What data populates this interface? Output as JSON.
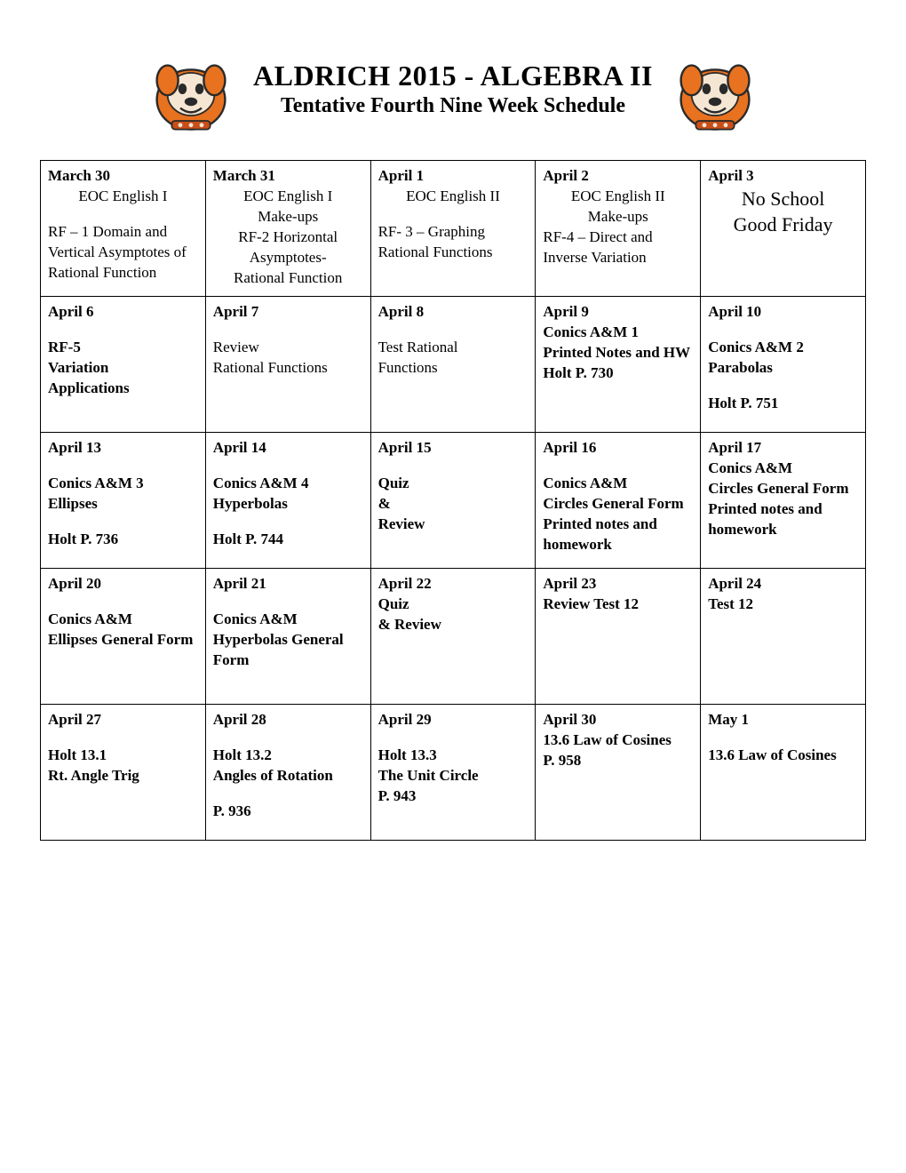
{
  "header": {
    "title": "ALDRICH 2015 - ALGEBRA II",
    "subtitle": "Tentative Fourth Nine Week Schedule",
    "mascot_colors": {
      "body": "#e8721f",
      "face": "#f5e6d3",
      "outline": "#2a2a2a",
      "collar": "#c94f1a"
    }
  },
  "table": {
    "border_color": "#000000",
    "columns": 5,
    "rows": [
      [
        {
          "date": "March 30",
          "lines": [
            {
              "t": "EOC English I",
              "style": "light-line"
            },
            {
              "t": "",
              "style": "blank-line"
            },
            {
              "t": "RF – 1 Domain and Vertical Asymptotes of Rational Function",
              "style": "light-left"
            }
          ]
        },
        {
          "date": "March 31",
          "lines": [
            {
              "t": "EOC English I",
              "style": "light-line"
            },
            {
              "t": "Make-ups",
              "style": "light-line"
            },
            {
              "t": "RF-2 Horizontal",
              "style": "light-line"
            },
            {
              "t": "Asymptotes-",
              "style": "light-line"
            },
            {
              "t": "Rational Function",
              "style": "light-line"
            }
          ]
        },
        {
          "date": "April 1",
          "lines": [
            {
              "t": "EOC English II",
              "style": "light-line"
            },
            {
              "t": "",
              "style": "blank-line"
            },
            {
              "t": "RF- 3 – Graphing",
              "style": "light-left"
            },
            {
              "t": "Rational Functions",
              "style": "light-left"
            }
          ]
        },
        {
          "date": "April 2",
          "lines": [
            {
              "t": "EOC English II",
              "style": "light-line"
            },
            {
              "t": "Make-ups",
              "style": "light-line"
            },
            {
              "t": "RF-4 – Direct and",
              "style": "light-left"
            },
            {
              "t": "Inverse Variation",
              "style": "light-left"
            }
          ]
        },
        {
          "date": "April 3",
          "lines": [
            {
              "t": "No School",
              "style": "big-line"
            },
            {
              "t": "Good Friday",
              "style": "big-line"
            }
          ]
        }
      ],
      [
        {
          "date": "April 6",
          "lines": [
            {
              "t": "",
              "style": "blank-line"
            },
            {
              "t": "RF-5",
              "style": "bold-line"
            },
            {
              "t": "Variation",
              "style": "bold-line"
            },
            {
              "t": "Applications",
              "style": "bold-line"
            }
          ]
        },
        {
          "date": "April 7",
          "lines": [
            {
              "t": "",
              "style": "blank-line"
            },
            {
              "t": "Review",
              "style": "light-left"
            },
            {
              "t": "Rational Functions",
              "style": "light-left"
            }
          ]
        },
        {
          "date": "April 8",
          "lines": [
            {
              "t": "",
              "style": "blank-line"
            },
            {
              "t": "Test Rational",
              "style": "light-left"
            },
            {
              "t": "Functions",
              "style": "light-left"
            }
          ]
        },
        {
          "date": "April 9",
          "lines": [
            {
              "t": "Conics A&M 1",
              "style": "bold-line"
            },
            {
              "t": "Printed Notes and HW",
              "style": "bold-line"
            },
            {
              "t": "Holt P. 730",
              "style": "bold-line"
            }
          ]
        },
        {
          "date": "April 10",
          "lines": [
            {
              "t": "",
              "style": "blank-line"
            },
            {
              "t": "Conics A&M 2",
              "style": "bold-line"
            },
            {
              "t": "Parabolas",
              "style": "bold-line"
            },
            {
              "t": "",
              "style": "blank-line"
            },
            {
              "t": "Holt P. 751",
              "style": "bold-line"
            }
          ]
        }
      ],
      [
        {
          "date": "April 13",
          "lines": [
            {
              "t": "",
              "style": "blank-line"
            },
            {
              "t": "Conics A&M 3",
              "style": "bold-line"
            },
            {
              "t": "Ellipses",
              "style": "bold-line"
            },
            {
              "t": "",
              "style": "blank-line"
            },
            {
              "t": "Holt P. 736",
              "style": "bold-line"
            }
          ]
        },
        {
          "date": "April 14",
          "lines": [
            {
              "t": "",
              "style": "blank-line"
            },
            {
              "t": "Conics A&M 4",
              "style": "bold-line"
            },
            {
              "t": "Hyperbolas",
              "style": "bold-line"
            },
            {
              "t": "",
              "style": "blank-line"
            },
            {
              "t": "Holt P. 744",
              "style": "bold-line"
            }
          ]
        },
        {
          "date": "April 15",
          "lines": [
            {
              "t": "",
              "style": "blank-line"
            },
            {
              "t": "Quiz",
              "style": "bold-line"
            },
            {
              "t": "&",
              "style": "bold-line"
            },
            {
              "t": "Review",
              "style": "bold-line"
            }
          ]
        },
        {
          "date": "April 16",
          "lines": [
            {
              "t": "",
              "style": "blank-line"
            },
            {
              "t": "Conics A&M",
              "style": "bold-line"
            },
            {
              "t": "Circles General Form",
              "style": "bold-line"
            },
            {
              "t": "Printed notes and homework",
              "style": "bold-line"
            }
          ]
        },
        {
          "date": "April 17",
          "lines": [
            {
              "t": "Conics A&M",
              "style": "bold-line"
            },
            {
              "t": "Circles General Form",
              "style": "bold-line"
            },
            {
              "t": "Printed notes and homework",
              "style": "bold-line"
            }
          ]
        }
      ],
      [
        {
          "date": "April 20",
          "lines": [
            {
              "t": "",
              "style": "blank-line"
            },
            {
              "t": "Conics A&M",
              "style": "bold-line"
            },
            {
              "t": "Ellipses General Form",
              "style": "bold-line"
            }
          ]
        },
        {
          "date": "April 21",
          "lines": [
            {
              "t": "",
              "style": "blank-line"
            },
            {
              "t": "Conics A&M",
              "style": "bold-line"
            },
            {
              "t": "Hyperbolas General Form",
              "style": "bold-line"
            }
          ]
        },
        {
          "date": "April 22",
          "lines": [
            {
              "t": "Quiz",
              "style": "bold-line"
            },
            {
              "t": "& Review",
              "style": "bold-line"
            }
          ]
        },
        {
          "date": "April 23",
          "lines": [
            {
              "t": "Review Test 12",
              "style": "bold-line"
            }
          ]
        },
        {
          "date": "April 24",
          "lines": [
            {
              "t": "Test 12",
              "style": "bold-line"
            }
          ]
        }
      ],
      [
        {
          "date": "April 27",
          "lines": [
            {
              "t": "",
              "style": "blank-line"
            },
            {
              "t": "Holt 13.1",
              "style": "bold-line"
            },
            {
              "t": "Rt. Angle Trig",
              "style": "bold-line"
            }
          ]
        },
        {
          "date": "April 28",
          "lines": [
            {
              "t": "",
              "style": "blank-line"
            },
            {
              "t": "Holt 13.2",
              "style": "bold-line"
            },
            {
              "t": "Angles of Rotation",
              "style": "bold-line"
            },
            {
              "t": "",
              "style": "blank-line"
            },
            {
              "t": "P. 936",
              "style": "bold-line"
            }
          ]
        },
        {
          "date": "April 29",
          "lines": [
            {
              "t": "",
              "style": "blank-line"
            },
            {
              "t": "Holt 13.3",
              "style": "bold-line"
            },
            {
              "t": "The Unit Circle",
              "style": "bold-line"
            },
            {
              "t": "P. 943",
              "style": "bold-line"
            }
          ]
        },
        {
          "date": "April 30",
          "lines": [
            {
              "t": "13.6 Law of Cosines",
              "style": "bold-line"
            },
            {
              "t": "P. 958",
              "style": "bold-line"
            }
          ]
        },
        {
          "date": "May 1",
          "lines": [
            {
              "t": "",
              "style": "blank-line"
            },
            {
              "t": "13.6 Law of Cosines",
              "style": "bold-line"
            }
          ]
        }
      ]
    ]
  }
}
